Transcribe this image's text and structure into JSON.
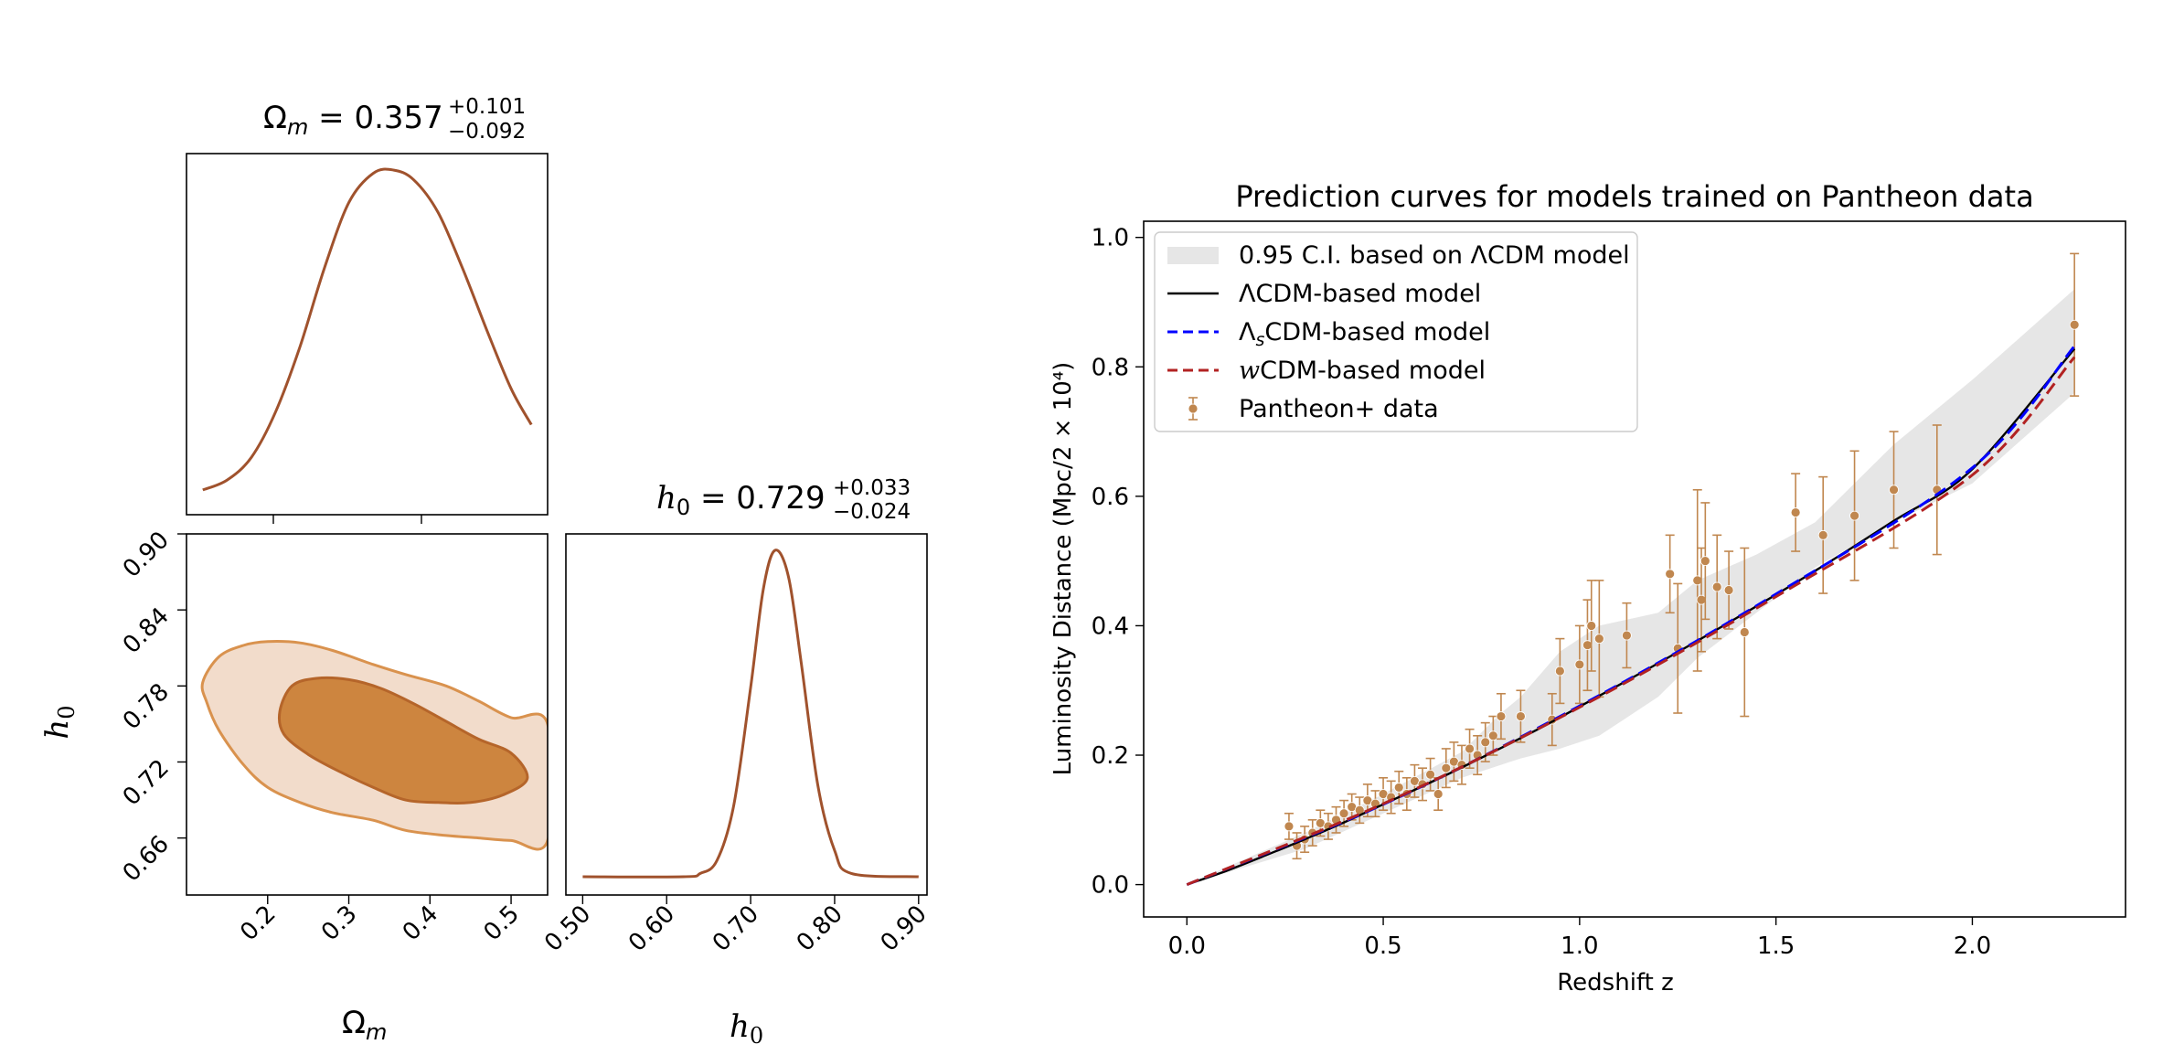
{
  "corner": {
    "omega_title": {
      "symbol": "Ω",
      "sub": "m",
      "value": " = 0.357",
      "plus": "+0.101",
      "minus": "−0.092"
    },
    "h0_title": {
      "symbol": "h",
      "sub": "0",
      "value": " = 0.729",
      "plus": "+0.033",
      "minus": "−0.024"
    },
    "xlabel_omega": {
      "symbol": "Ω",
      "sub": "m"
    },
    "xlabel_h0": {
      "symbol": "h",
      "sub": "0"
    },
    "ylabel_h0": {
      "symbol": "h",
      "sub": "0"
    },
    "omega_ticks": [
      "0.2",
      "0.3",
      "0.4",
      "0.5"
    ],
    "h0_ticks": [
      "0.50",
      "0.60",
      "0.70",
      "0.80",
      "0.90"
    ],
    "h0_y_ticks": [
      "0.66",
      "0.72",
      "0.78",
      "0.84",
      "0.90"
    ],
    "colors": {
      "curve": "#a0522d",
      "inner": "#cd853f",
      "outer": "#f2dccb",
      "outer_edge": "#d9924e",
      "inner_edge": "#b5652a"
    }
  },
  "chart_data": [
    {
      "type": "line",
      "name": "omega_m_marginal",
      "x": [
        0.12,
        0.15,
        0.18,
        0.21,
        0.24,
        0.27,
        0.3,
        0.33,
        0.355,
        0.38,
        0.41,
        0.44,
        0.47,
        0.5,
        0.525
      ],
      "y": [
        0.02,
        0.05,
        0.12,
        0.26,
        0.46,
        0.7,
        0.9,
        0.99,
        1.0,
        0.97,
        0.87,
        0.7,
        0.51,
        0.33,
        0.22
      ],
      "title": "Ωm = 0.357 (+0.101 / −0.092)",
      "xlim": [
        0.1,
        0.545
      ]
    },
    {
      "type": "line",
      "name": "h0_marginal",
      "x": [
        0.5,
        0.62,
        0.64,
        0.66,
        0.68,
        0.7,
        0.715,
        0.729,
        0.745,
        0.76,
        0.78,
        0.8,
        0.82,
        0.9
      ],
      "y": [
        0.0,
        0.0,
        0.01,
        0.05,
        0.22,
        0.58,
        0.88,
        1.0,
        0.92,
        0.66,
        0.28,
        0.08,
        0.01,
        0.0
      ],
      "title": "h0 = 0.729 (+0.033 / −0.024)",
      "xlim": [
        0.48,
        0.91
      ],
      "xticks": [
        "0.50",
        "0.60",
        "0.70",
        "0.80",
        "0.90"
      ]
    },
    {
      "type": "contour",
      "name": "omega_m_h0_joint",
      "xlabel": "Ωm",
      "ylabel": "h0",
      "xlim": [
        0.1,
        0.545
      ],
      "ylim": [
        0.615,
        0.9
      ],
      "levels": [
        {
          "label": "outer",
          "points": [
            [
              0.12,
              0.783
            ],
            [
              0.14,
              0.803
            ],
            [
              0.17,
              0.812
            ],
            [
              0.2,
              0.815
            ],
            [
              0.24,
              0.814
            ],
            [
              0.28,
              0.808
            ],
            [
              0.33,
              0.797
            ],
            [
              0.37,
              0.789
            ],
            [
              0.42,
              0.78
            ],
            [
              0.46,
              0.768
            ],
            [
              0.5,
              0.755
            ],
            [
              0.545,
              0.75
            ],
            [
              0.545,
              0.658
            ],
            [
              0.5,
              0.658
            ],
            [
              0.46,
              0.66
            ],
            [
              0.42,
              0.662
            ],
            [
              0.37,
              0.666
            ],
            [
              0.33,
              0.674
            ],
            [
              0.28,
              0.68
            ],
            [
              0.24,
              0.688
            ],
            [
              0.2,
              0.7
            ],
            [
              0.17,
              0.718
            ],
            [
              0.14,
              0.745
            ],
            [
              0.125,
              0.767
            ]
          ]
        },
        {
          "label": "inner",
          "points": [
            [
              0.215,
              0.76
            ],
            [
              0.23,
              0.78
            ],
            [
              0.26,
              0.786
            ],
            [
              0.3,
              0.785
            ],
            [
              0.34,
              0.778
            ],
            [
              0.38,
              0.766
            ],
            [
              0.42,
              0.752
            ],
            [
              0.46,
              0.738
            ],
            [
              0.5,
              0.727
            ],
            [
              0.52,
              0.707
            ],
            [
              0.49,
              0.694
            ],
            [
              0.45,
              0.688
            ],
            [
              0.41,
              0.688
            ],
            [
              0.37,
              0.69
            ],
            [
              0.33,
              0.7
            ],
            [
              0.29,
              0.712
            ],
            [
              0.25,
              0.726
            ],
            [
              0.22,
              0.742
            ]
          ]
        }
      ],
      "yticks": [
        "0.66",
        "0.72",
        "0.78",
        "0.84",
        "0.90"
      ],
      "xticks": [
        "0.2",
        "0.3",
        "0.4",
        "0.5"
      ]
    },
    {
      "type": "line",
      "name": "luminosity_distance",
      "title": "Prediction curves for models trained on Pantheon data",
      "xlabel": "Redshift z",
      "ylabel": "Luminosity Distance (Mpc/2 × 10⁴)",
      "xlim": [
        -0.11,
        2.39
      ],
      "ylim": [
        -0.05,
        1.025
      ],
      "xticks": [
        "0.0",
        "0.5",
        "1.0",
        "1.5",
        "2.0"
      ],
      "yticks": [
        "0.0",
        "0.2",
        "0.4",
        "0.6",
        "0.8",
        "1.0"
      ],
      "legend_position": "top-left",
      "legend": [
        {
          "label": "0.95 C.I. based on ΛCDM model",
          "kind": "band"
        },
        {
          "label_pre": "ΛCDM-based model",
          "kind": "solid"
        },
        {
          "label_pre": "Λ",
          "label_sub": "s",
          "label_post": "CDM-based model",
          "kind": "dashed-blue"
        },
        {
          "label_italic": "w",
          "label_post": "CDM-based model",
          "kind": "dashed-red"
        },
        {
          "label": "Pantheon+ data",
          "kind": "errorbar"
        }
      ],
      "series": [
        {
          "name": "ΛCDM-based model",
          "color": "#000000",
          "x": [
            0.0,
            0.1,
            0.2,
            0.3,
            0.4,
            0.5,
            0.6,
            0.7,
            0.8,
            0.9,
            1.0,
            1.2,
            1.4,
            1.6,
            1.8,
            2.0,
            2.26
          ],
          "y": [
            0.0,
            0.021,
            0.045,
            0.07,
            0.096,
            0.124,
            0.152,
            0.181,
            0.211,
            0.242,
            0.275,
            0.342,
            0.412,
            0.485,
            0.562,
            0.642,
            0.828
          ]
        },
        {
          "name": "ΛsCDM-based model",
          "color": "#0000ff",
          "x": [
            0.0,
            0.5,
            1.0,
            1.5,
            2.0,
            2.26
          ],
          "y": [
            0.0,
            0.124,
            0.276,
            0.449,
            0.644,
            0.832
          ]
        },
        {
          "name": "wCDM-based model",
          "color": "#b22222",
          "x": [
            0.0,
            0.5,
            1.0,
            1.5,
            2.0,
            2.26
          ],
          "y": [
            0.0,
            0.125,
            0.274,
            0.445,
            0.633,
            0.815
          ]
        }
      ],
      "band": {
        "x": [
          0.0,
          0.3,
          0.5,
          0.7,
          0.8,
          0.85,
          0.95,
          1.05,
          1.2,
          1.3,
          1.45,
          1.6,
          1.8,
          2.0,
          2.26
        ],
        "upper": [
          0.0,
          0.08,
          0.14,
          0.205,
          0.265,
          0.29,
          0.36,
          0.4,
          0.42,
          0.47,
          0.51,
          0.56,
          0.68,
          0.78,
          0.92
        ],
        "lower": [
          0.0,
          0.055,
          0.11,
          0.165,
          0.185,
          0.195,
          0.21,
          0.23,
          0.29,
          0.35,
          0.42,
          0.49,
          0.56,
          0.62,
          0.76
        ]
      },
      "points": {
        "x": [
          0.26,
          0.28,
          0.3,
          0.32,
          0.34,
          0.36,
          0.38,
          0.4,
          0.42,
          0.44,
          0.46,
          0.48,
          0.5,
          0.52,
          0.54,
          0.56,
          0.58,
          0.6,
          0.62,
          0.64,
          0.66,
          0.68,
          0.7,
          0.72,
          0.74,
          0.76,
          0.78,
          0.8,
          0.85,
          0.93,
          0.95,
          1.0,
          1.02,
          1.03,
          1.05,
          1.12,
          1.23,
          1.25,
          1.3,
          1.31,
          1.32,
          1.35,
          1.38,
          1.42,
          1.55,
          1.62,
          1.7,
          1.8,
          1.91,
          2.26
        ],
        "y": [
          0.09,
          0.06,
          0.07,
          0.08,
          0.095,
          0.09,
          0.1,
          0.11,
          0.12,
          0.115,
          0.13,
          0.125,
          0.14,
          0.135,
          0.15,
          0.14,
          0.16,
          0.155,
          0.17,
          0.14,
          0.18,
          0.19,
          0.185,
          0.21,
          0.2,
          0.22,
          0.23,
          0.26,
          0.26,
          0.255,
          0.33,
          0.34,
          0.37,
          0.4,
          0.38,
          0.385,
          0.48,
          0.365,
          0.47,
          0.44,
          0.5,
          0.46,
          0.455,
          0.39,
          0.575,
          0.54,
          0.57,
          0.61,
          0.61,
          0.865
        ],
        "err": [
          0.02,
          0.02,
          0.02,
          0.02,
          0.02,
          0.02,
          0.02,
          0.02,
          0.02,
          0.02,
          0.025,
          0.02,
          0.025,
          0.025,
          0.025,
          0.025,
          0.025,
          0.025,
          0.025,
          0.025,
          0.03,
          0.03,
          0.03,
          0.03,
          0.03,
          0.03,
          0.03,
          0.035,
          0.04,
          0.04,
          0.05,
          0.06,
          0.07,
          0.07,
          0.09,
          0.05,
          0.06,
          0.1,
          0.14,
          0.08,
          0.09,
          0.08,
          0.06,
          0.13,
          0.06,
          0.09,
          0.1,
          0.09,
          0.1,
          0.11
        ]
      },
      "colors": {
        "data": "#c0874f",
        "band": "#e6e6e6"
      }
    }
  ]
}
